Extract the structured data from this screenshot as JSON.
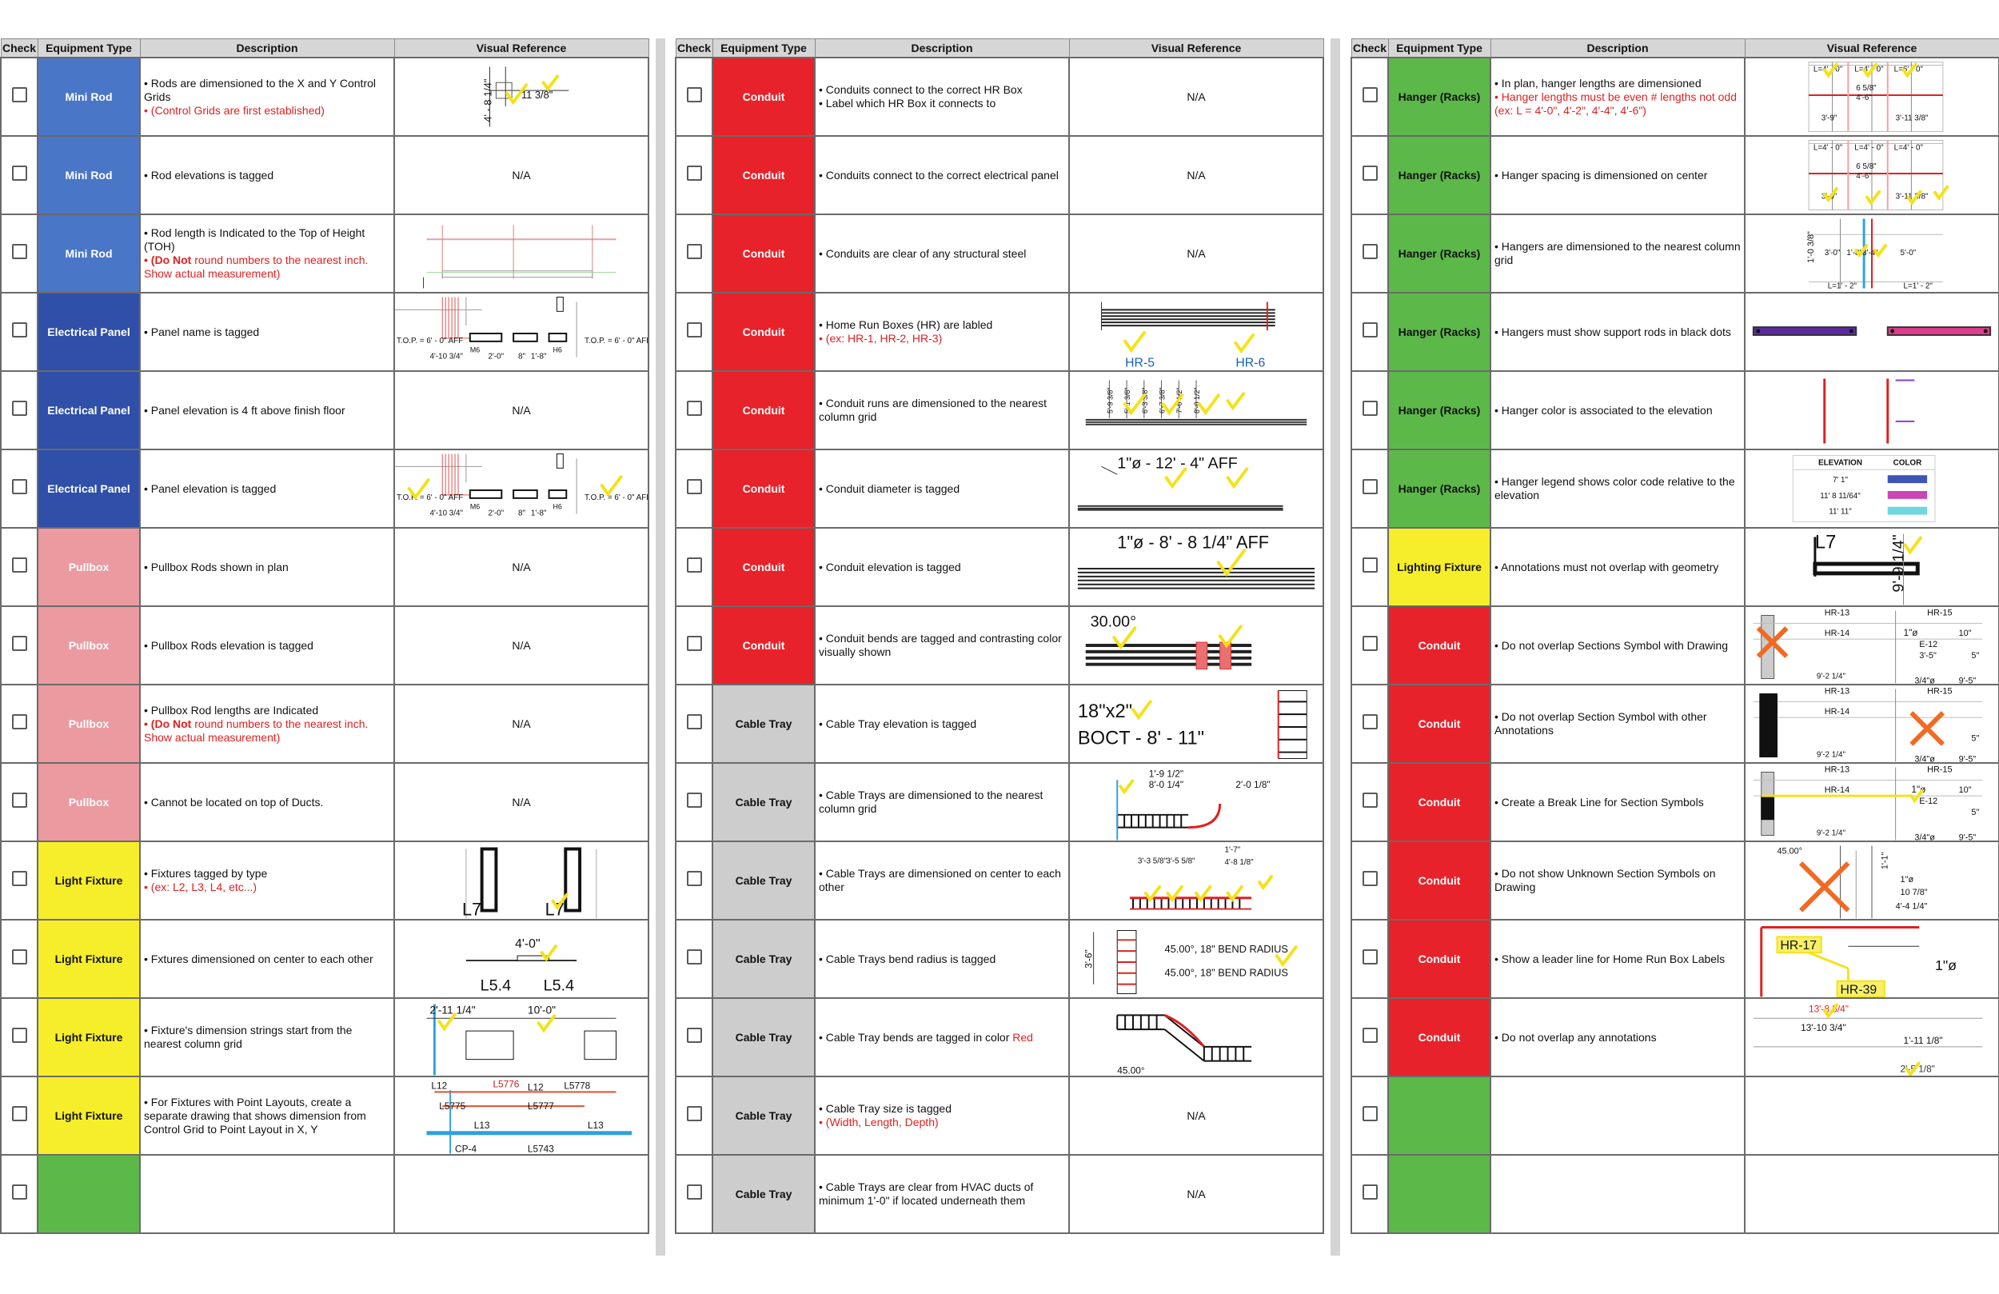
{
  "headers": [
    "Check",
    "Equipment Type",
    "Description",
    "Visual Reference"
  ],
  "colors": {
    "mini_rod": "#4a76c8",
    "electrical_panel": "#2f4fa8",
    "pullbox": "#eb9aa0",
    "light_fixture": "#f6ee2a",
    "hanger": "#5db84a",
    "conduit": "#e8222a",
    "cable_tray": "#cdcdcd",
    "checkmark": "#f4e21a",
    "cross": "#f26a22"
  },
  "columns": [
    {
      "rows": [
        {
          "type": "Mini Rod",
          "color_key": "mini_rod",
          "text_color": "#ffffff",
          "desc": "• Rods are dimensioned to the X and Y Control Grids",
          "note": "• (Control Grids are first established)",
          "visual": "",
          "vis_labels": [
            "4' - 8 1/4\"",
            "11 3/8\""
          ]
        },
        {
          "type": "Mini Rod",
          "color_key": "mini_rod",
          "text_color": "#ffffff",
          "desc": "• Rod elevations is tagged",
          "note": "",
          "visual": "N/A"
        },
        {
          "type": "Mini Rod",
          "color_key": "mini_rod",
          "text_color": "#ffffff",
          "desc": "• Rod length is Indicated to the Top of Height (TOH)",
          "note_bold": "• (Do Not",
          "note": " round numbers to the nearest inch. Show actual measurement)",
          "visual": ""
        },
        {
          "type": "Electrical Panel",
          "color_key": "electrical_panel",
          "text_color": "#ffffff",
          "desc": "• Panel name is tagged",
          "note": "",
          "visual": "",
          "vis_labels": [
            "T.O.P. = 6' - 0\" AFF",
            "T.O.P. = 6' - 0\" AFF",
            "4'-10 3/4\"",
            "2'-0\"",
            "8\"",
            "1'-8\"",
            "M6",
            "H6"
          ]
        },
        {
          "type": "Electrical Panel",
          "color_key": "electrical_panel",
          "text_color": "#ffffff",
          "desc": "• Panel elevation is 4 ft above finish floor",
          "note": "",
          "visual": "N/A"
        },
        {
          "type": "Electrical Panel",
          "color_key": "electrical_panel",
          "text_color": "#ffffff",
          "desc": "• Panel elevation is tagged",
          "note": "",
          "visual": "",
          "vis_labels": [
            "T.O.P. = 6' - 0\" AFF",
            "T.O.P. = 6' - 0\" AFF",
            "4'-10 3/4\"",
            "2'-0\"",
            "8\"",
            "1'-8\"",
            "M6",
            "H6"
          ]
        },
        {
          "type": "Pullbox",
          "color_key": "pullbox",
          "text_color": "#ffffff",
          "desc": "• Pullbox Rods shown in plan",
          "note": "",
          "visual": "N/A"
        },
        {
          "type": "Pullbox",
          "color_key": "pullbox",
          "text_color": "#ffffff",
          "desc": "• Pullbox Rods elevation is tagged",
          "note": "",
          "visual": "N/A"
        },
        {
          "type": "Pullbox",
          "color_key": "pullbox",
          "text_color": "#ffffff",
          "desc": "• Pullbox Rod lengths are Indicated",
          "note_bold": "• (Do Not",
          "note": " round numbers to the nearest inch. Show actual measurement)",
          "visual": "N/A"
        },
        {
          "type": "Pullbox",
          "color_key": "pullbox",
          "text_color": "#ffffff",
          "desc": "• Cannot be located on top of Ducts.",
          "note": "",
          "visual": "N/A"
        },
        {
          "type": "Light Fixture",
          "color_key": "light_fixture",
          "text_color": "#111111",
          "desc": "• Fixtures tagged by type",
          "note": "• (ex: L2, L3, L4, etc...)",
          "visual": "",
          "vis_labels": [
            "L7",
            "L7"
          ]
        },
        {
          "type": "Light Fixture",
          "color_key": "light_fixture",
          "text_color": "#111111",
          "desc": "• Fxtures dimensioned on center to each other",
          "note": "",
          "visual": "",
          "vis_labels": [
            "4'-0\"",
            "L5.4",
            "L5.4"
          ]
        },
        {
          "type": "Light Fixture",
          "color_key": "light_fixture",
          "text_color": "#111111",
          "desc": "• Fixture's dimension strings start from the nearest column grid",
          "note": "",
          "visual": "",
          "vis_labels": [
            "2'-11 1/4\"",
            "10'-0\""
          ]
        },
        {
          "type": "Light Fixture",
          "color_key": "light_fixture",
          "text_color": "#111111",
          "desc": "• For Fixtures with Point Layouts, create a separate drawing that shows dimension from Control Grid to Point Layout in X, Y",
          "note": "",
          "visual": "",
          "vis_labels": [
            "L12",
            "L5776",
            "L12",
            "L5778",
            "L5775",
            "L5777",
            "L13",
            "L13",
            "CP-4",
            "L5743"
          ]
        },
        {
          "type": "",
          "color_key": "hanger",
          "text_color": "#ffffff",
          "desc": "",
          "note": "",
          "visual": ""
        }
      ]
    },
    {
      "rows": [
        {
          "type": "Conduit",
          "color_key": "conduit",
          "text_color": "#ffffff",
          "desc": "• Conduits connect to the correct HR Box\n• Label which HR Box it connects to",
          "note": "",
          "visual": "N/A"
        },
        {
          "type": "Conduit",
          "color_key": "conduit",
          "text_color": "#ffffff",
          "desc": "• Conduits connect to the correct electrical panel",
          "note": "",
          "visual": "N/A"
        },
        {
          "type": "Conduit",
          "color_key": "conduit",
          "text_color": "#ffffff",
          "desc": "• Conduits are clear of any structural steel",
          "note": "",
          "visual": "N/A"
        },
        {
          "type": "Conduit",
          "color_key": "conduit",
          "text_color": "#ffffff",
          "desc": "• Home Run Boxes (HR) are labled",
          "note": "• (ex: HR-1, HR-2, HR-3)",
          "visual": "",
          "vis_labels": [
            "HR-5",
            "HR-6"
          ]
        },
        {
          "type": "Conduit",
          "color_key": "conduit",
          "text_color": "#ffffff",
          "desc": "• Conduit runs are dimensioned to the nearest column grid",
          "note": "",
          "visual": "",
          "vis_labels": [
            "5'-9 3/8\"",
            "5'-1 3/8\"",
            "6'-3 3/8\"",
            "6'-7 3/8\"",
            "7'-0 1/2\"",
            "8'-0 1/2\""
          ]
        },
        {
          "type": "Conduit",
          "color_key": "conduit",
          "text_color": "#ffffff",
          "desc": "• Conduit diameter is tagged",
          "note": "",
          "visual": "",
          "vis_labels": [
            "1\"ø - 12' - 4\" AFF"
          ]
        },
        {
          "type": "Conduit",
          "color_key": "conduit",
          "text_color": "#ffffff",
          "desc": "• Conduit elevation is tagged",
          "note": "",
          "visual": "",
          "vis_labels": [
            "1\"ø - 8' - 8 1/4\" AFF"
          ]
        },
        {
          "type": "Conduit",
          "color_key": "conduit",
          "text_color": "#ffffff",
          "desc": "• Conduit bends are tagged and contrasting color visually shown",
          "note": "",
          "visual": "",
          "vis_labels": [
            "30.00°"
          ]
        },
        {
          "type": "Cable Tray",
          "color_key": "cable_tray",
          "text_color": "#111111",
          "desc": "• Cable Tray elevation is tagged",
          "note": "",
          "visual": "",
          "vis_labels": [
            "18\"x2\"",
            "BOCT - 8' - 11\""
          ]
        },
        {
          "type": "Cable Tray",
          "color_key": "cable_tray",
          "text_color": "#111111",
          "desc": "• Cable Trays are dimensioned to the nearest column grid",
          "note": "",
          "visual": "",
          "vis_labels": [
            "1'-9 1/2\"",
            "8'-0 1/4\"",
            "2'-0 1/8\""
          ]
        },
        {
          "type": "Cable Tray",
          "color_key": "cable_tray",
          "text_color": "#111111",
          "desc": "• Cable Trays are dimensioned on center to each other",
          "note": "",
          "visual": "",
          "vis_labels": [
            "3'-3 5/8\"",
            "3'-5 5/8\"",
            "1'-7\"",
            "4'-8 1/8\""
          ]
        },
        {
          "type": "Cable Tray",
          "color_key": "cable_tray",
          "text_color": "#111111",
          "desc": "• Cable Trays bend radius is tagged",
          "note": "",
          "visual": "",
          "vis_labels": [
            "3'-6\"",
            "45.00°, 18\" BEND RADIUS",
            "45.00°, 18\" BEND RADIUS"
          ]
        },
        {
          "type": "Cable Tray",
          "color_key": "cable_tray",
          "text_color": "#111111",
          "desc": "• Cable Tray bends are tagged in color ",
          "note_inline": "Red",
          "note": "",
          "visual": "",
          "vis_labels": [
            "45.00°"
          ]
        },
        {
          "type": "Cable Tray",
          "color_key": "cable_tray",
          "text_color": "#111111",
          "desc": "• Cable Tray size is tagged",
          "note": "• (Width, Length, Depth)",
          "visual": "N/A"
        },
        {
          "type": "Cable Tray",
          "color_key": "cable_tray",
          "text_color": "#111111",
          "desc": "• Cable Trays are clear from HVAC ducts of minimum 1'-0\" if located underneath them",
          "note": "",
          "visual": "N/A"
        }
      ]
    },
    {
      "rows": [
        {
          "type": "Hanger (Racks)",
          "color_key": "hanger",
          "text_color": "#111111",
          "desc": "• In plan, hanger lengths are dimensioned",
          "note": "• Hanger lengths must be even # lengths not odd (ex: L = 4'-0\", 4'-2\", 4'-4\", 4'-6\")",
          "visual": "",
          "vis_labels": [
            "L=4' - 0\"",
            "L=4' - 0\"",
            "L=6' - 0\"",
            "6 5/8\"",
            "4'-6\"",
            "3'-9\"",
            "3'-11 3/8\""
          ]
        },
        {
          "type": "Hanger (Racks)",
          "color_key": "hanger",
          "text_color": "#111111",
          "desc": "• Hanger spacing is dimensioned on center",
          "note": "",
          "visual": "",
          "vis_labels": [
            "L=4' - 0\"",
            "L=4' - 0\"",
            "L=4' - 0\"",
            "6 5/8\"",
            "4'-6\"",
            "3'-9\"",
            "3'-11 3/8\""
          ]
        },
        {
          "type": "Hanger (Racks)",
          "color_key": "hanger",
          "text_color": "#111111",
          "desc": "• Hangers are dimensioned to the nearest column grid",
          "note": "",
          "visual": "",
          "vis_labels": [
            "1'-0 3/8\"",
            "3'-0\"",
            "1'-8\"",
            "3'-4\"",
            "5'-0\"",
            "L=1' - 2\"",
            "L=1' - 2\""
          ]
        },
        {
          "type": "Hanger (Racks)",
          "color_key": "hanger",
          "text_color": "#111111",
          "desc": "• Hangers must show support rods in black dots",
          "note": "",
          "visual": ""
        },
        {
          "type": "Hanger (Racks)",
          "color_key": "hanger",
          "text_color": "#111111",
          "desc": "• Hanger color is associated to the elevation",
          "note": "",
          "visual": ""
        },
        {
          "type": "Hanger (Racks)",
          "color_key": "hanger",
          "text_color": "#111111",
          "desc": "• Hanger legend shows color code relative to the elevation",
          "note": "",
          "visual": "",
          "legend": {
            "headers": [
              "ELEVATION",
              "COLOR"
            ],
            "rows": [
              {
                "elev": "7' 1\"",
                "color": "#3e55b5"
              },
              {
                "elev": "11' 8 11/64\"",
                "color": "#c846b5"
              },
              {
                "elev": "11' 11\"",
                "color": "#6fd6df"
              }
            ]
          }
        },
        {
          "type": "Lighting Fixture",
          "color_key": "light_fixture",
          "text_color": "#111111",
          "desc": "• Annotations must not overlap with geometry",
          "note": "",
          "visual": "",
          "vis_labels": [
            "L7",
            "9'-9 1/4\""
          ]
        },
        {
          "type": "Conduit",
          "color_key": "conduit",
          "text_color": "#ffffff",
          "desc": "• Do not overlap Sections Symbol with Drawing",
          "note": "",
          "visual": "",
          "vis_labels": [
            "HR-13",
            "HR-15",
            "HR-14",
            "1\"ø",
            "10\"",
            "E-12",
            "3'-5\"",
            "5\"",
            "9'-2 1/4\"",
            "3/4\"ø",
            "9'-5\""
          ]
        },
        {
          "type": "Conduit",
          "color_key": "conduit",
          "text_color": "#ffffff",
          "desc": "• Do not overlap Section Symbol with other Annotations",
          "note": "",
          "visual": "",
          "vis_labels": [
            "HR-13",
            "HR-15",
            "HR-14",
            "9'-2 1/4\"",
            "3/4\"ø",
            "9'-5\"",
            "5\""
          ]
        },
        {
          "type": "Conduit",
          "color_key": "conduit",
          "text_color": "#ffffff",
          "desc": "• Create a Break Line for Section Symbols",
          "note": "",
          "visual": "",
          "vis_labels": [
            "HR-13",
            "HR-15",
            "HR-14",
            "1\"ø",
            "10\"",
            "E-12",
            "5\"",
            "9'-2 1/4\"",
            "3/4\"ø",
            "9'-5\""
          ]
        },
        {
          "type": "Conduit",
          "color_key": "conduit",
          "text_color": "#ffffff",
          "desc": "• Do not show Unknown Section Symbols on Drawing",
          "note": "",
          "visual": "",
          "vis_labels": [
            "45.00°",
            "1'-1\"",
            "1\"ø",
            "10 7/8\"",
            "4'-4 1/4\""
          ]
        },
        {
          "type": "Conduit",
          "color_key": "conduit",
          "text_color": "#ffffff",
          "desc": "• Show a leader line for Home Run Box Labels",
          "note": "",
          "visual": "",
          "vis_labels": [
            "HR-17",
            "HR-39",
            "1\"ø"
          ]
        },
        {
          "type": "Conduit",
          "color_key": "conduit",
          "text_color": "#ffffff",
          "desc": "• Do not overlap any annotations",
          "note": "",
          "visual": "",
          "vis_labels": [
            "13'-8 3/4\"",
            "13'-10 3/4\"",
            "1'-11 1/8\"",
            "2'-5 1/8\""
          ]
        },
        {
          "type": "",
          "color_key": "hanger",
          "text_color": "#ffffff",
          "desc": "",
          "note": "",
          "visual": ""
        },
        {
          "type": "",
          "color_key": "hanger",
          "text_color": "#ffffff",
          "desc": "",
          "note": "",
          "visual": ""
        }
      ]
    }
  ]
}
